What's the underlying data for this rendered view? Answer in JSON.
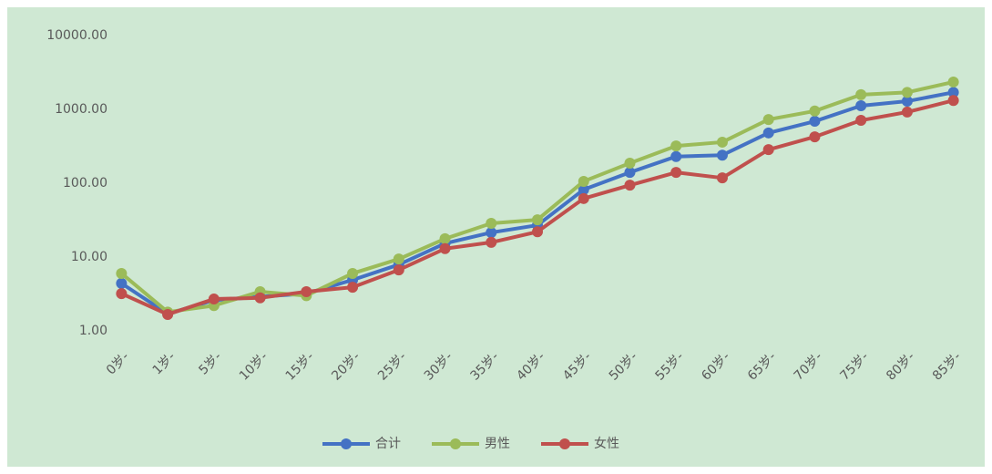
{
  "chart_data": {
    "type": "line",
    "yscale": "log",
    "grid": false,
    "legend": "bottom",
    "categories": [
      "0岁-",
      "1岁-",
      "5岁-",
      "10岁-",
      "15岁-",
      "20岁-",
      "25岁-",
      "30岁-",
      "35岁-",
      "40岁-",
      "45岁-",
      "50岁-",
      "55岁-",
      "60岁-",
      "65岁-",
      "70岁-",
      "75岁-",
      "80岁-",
      "85岁-"
    ],
    "series": [
      {
        "name": "合计",
        "color": "#4472c4",
        "values": [
          4.4,
          1.7,
          2.6,
          2.9,
          3.2,
          4.9,
          7.9,
          15.3,
          21.5,
          27,
          82,
          140,
          230,
          240,
          480,
          690,
          1120,
          1290,
          1700
        ]
      },
      {
        "name": "男性",
        "color": "#9bbb59",
        "values": [
          6.0,
          1.8,
          2.2,
          3.4,
          3.0,
          6.0,
          9.4,
          17.7,
          28.6,
          32,
          106,
          187,
          320,
          360,
          730,
          950,
          1580,
          1700,
          2350
        ]
      },
      {
        "name": "女性",
        "color": "#c0504d",
        "values": [
          3.2,
          1.67,
          2.7,
          2.8,
          3.4,
          3.9,
          6.7,
          13,
          15.8,
          22,
          62,
          94,
          140,
          118,
          285,
          425,
          710,
          920,
          1320
        ]
      }
    ],
    "ylim": [
      1,
      10000
    ],
    "yticks": [
      {
        "value": 1,
        "label": "1.00"
      },
      {
        "value": 10,
        "label": "10.00"
      },
      {
        "value": 100,
        "label": "100.00"
      },
      {
        "value": 1000,
        "label": "1000.00"
      },
      {
        "value": 10000,
        "label": "10000.00"
      }
    ]
  }
}
